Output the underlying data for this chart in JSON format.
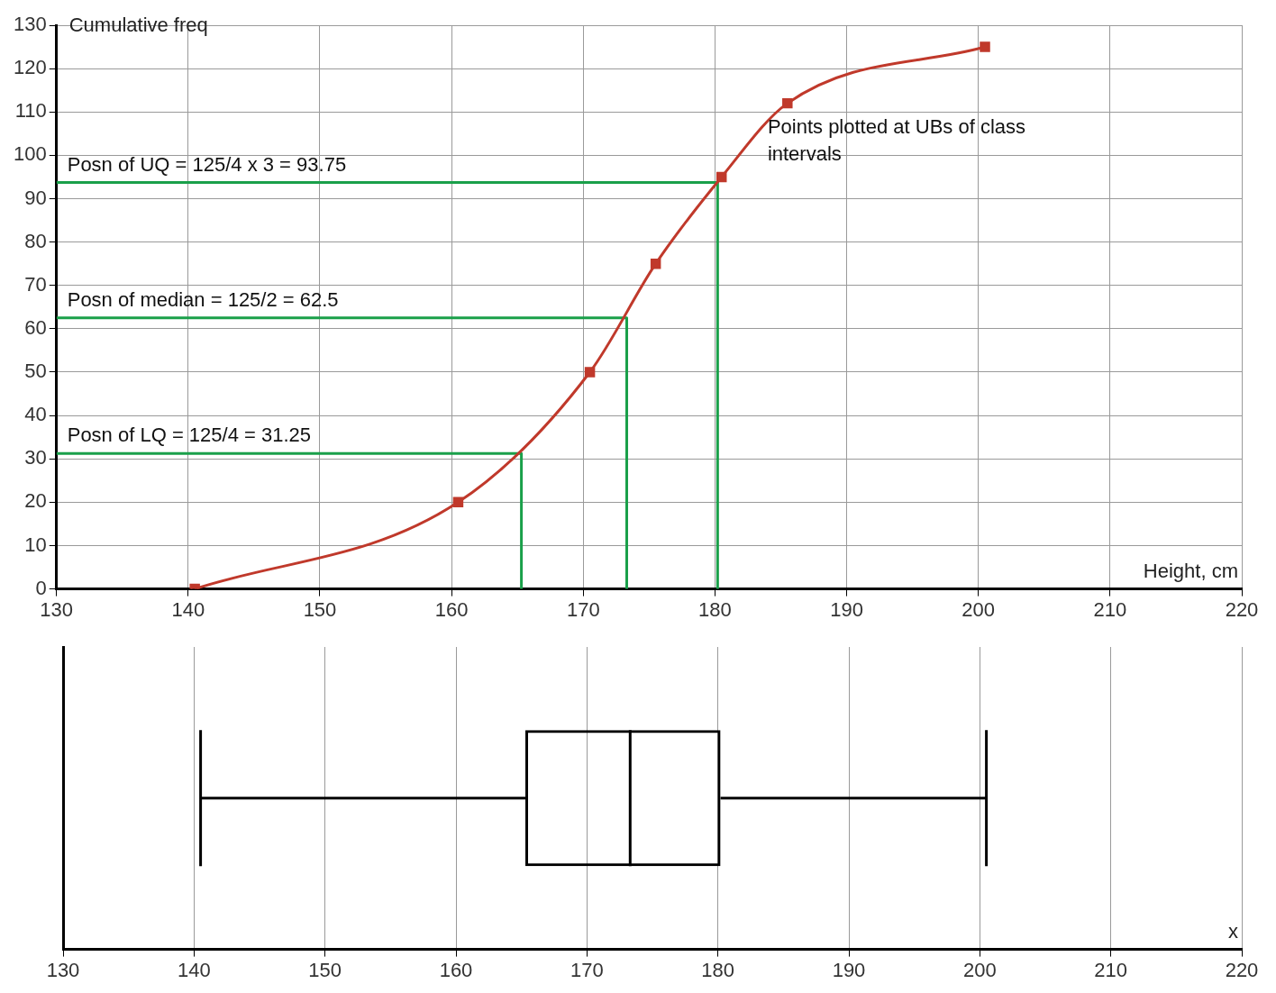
{
  "chart_data": [
    {
      "type": "line",
      "xlabel": "Height, cm",
      "ylabel": "Cumulative freq",
      "xlim": [
        130,
        220
      ],
      "xticks": [
        130,
        140,
        150,
        160,
        170,
        180,
        190,
        200,
        210,
        220
      ],
      "ylim": [
        0,
        130
      ],
      "yticks": [
        0,
        10,
        20,
        30,
        40,
        50,
        60,
        70,
        80,
        90,
        100,
        110,
        120,
        130
      ],
      "grid": true,
      "legend": false,
      "series": [
        {
          "type": "line",
          "color": "#c0392b",
          "marker": "square",
          "x": [
            140.5,
            160.5,
            170.5,
            175.5,
            180.5,
            185.5,
            200.5
          ],
          "values": [
            0,
            20,
            50,
            75,
            95,
            112,
            125
          ]
        },
        {
          "type": "line",
          "color": "#1aa04a",
          "marker": "none",
          "x": [
            130,
            165.3,
            165.3
          ],
          "values": [
            31.25,
            31.25,
            0
          ]
        },
        {
          "type": "line",
          "color": "#1aa04a",
          "marker": "none",
          "x": [
            130,
            173.3,
            173.3
          ],
          "values": [
            62.5,
            62.5,
            0
          ]
        },
        {
          "type": "line",
          "color": "#1aa04a",
          "marker": "none",
          "x": [
            130,
            180.2,
            180.2
          ],
          "values": [
            93.75,
            93.75,
            0
          ]
        }
      ],
      "annotations": [
        "Posn of LQ = 125/4 = 31.25",
        "Posn of median = 125/2 = 62.5",
        "Posn of UQ = 125/4 x 3 = 93.75",
        "Points plotted at UBs of class intervals"
      ]
    },
    {
      "type": "box",
      "orientation": "horizontal",
      "xlabel": "x",
      "categories": [
        null
      ],
      "color": "#000000",
      "xlim": [
        130,
        220
      ],
      "xticks": [
        130,
        140,
        150,
        160,
        170,
        180,
        190,
        200,
        210,
        220
      ],
      "grid": "x",
      "tick_labels": "x",
      "legend": false,
      "boxes": [
        {
          "low": 140.5,
          "q1": 165.3,
          "median": 173.3,
          "q3": 180.2,
          "high": 200.5
        }
      ]
    }
  ]
}
